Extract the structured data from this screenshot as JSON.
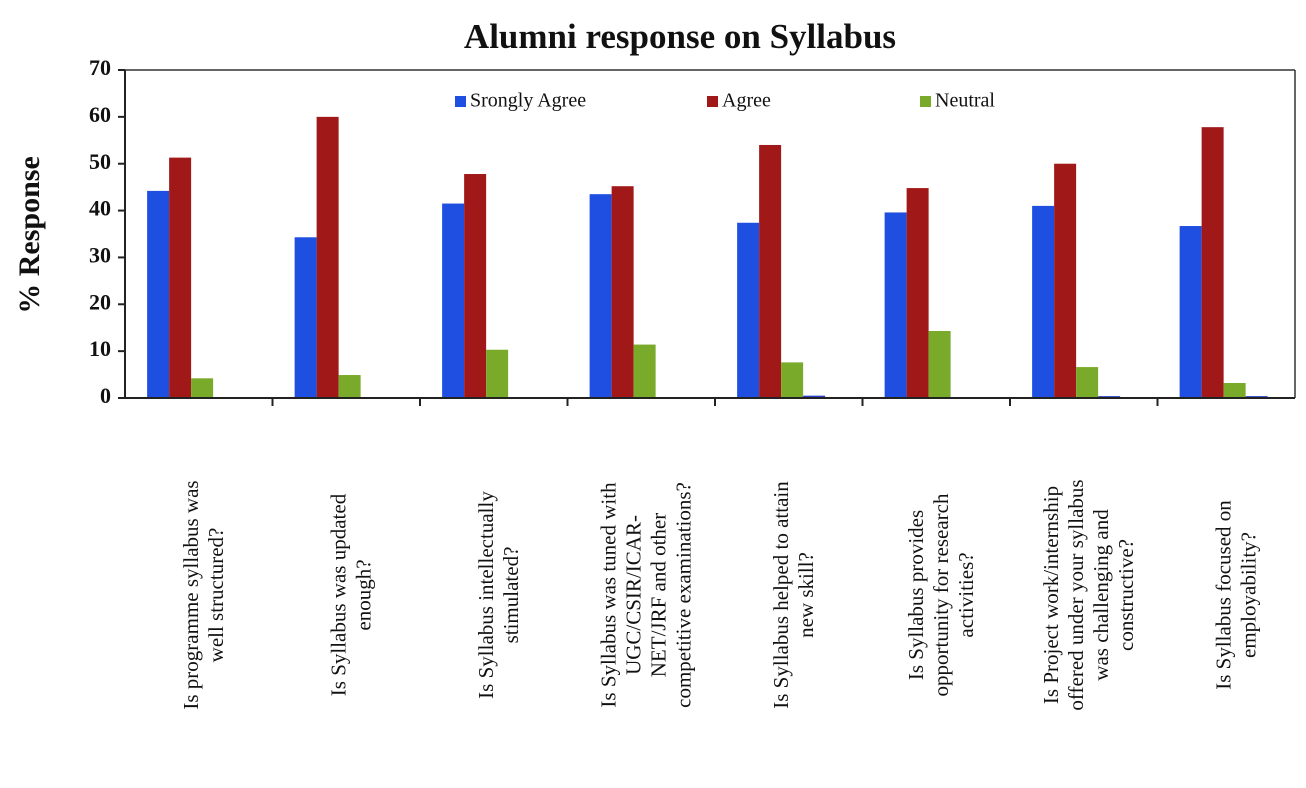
{
  "chart_data": {
    "type": "bar",
    "title": "Alumni response on Syllabus",
    "ylabel": "% Response",
    "categories": [
      [
        "Is programme syllabus was",
        "well structured?"
      ],
      [
        "Is Syllabus was updated",
        "enough?"
      ],
      [
        "Is Syllabus intellectually",
        "stimulated?"
      ],
      [
        "Is Syllabus was tuned with",
        "UGC/CSIR/ICAR-",
        "NET/JRF and other",
        "competitive examinations?"
      ],
      [
        "Is Syllabus helped to attain",
        "new skill?"
      ],
      [
        "Is Syllabus provides",
        "opportunity for research",
        "activities?"
      ],
      [
        "Is Project work/internship",
        "offered under your syllabus",
        "was challenging and",
        "constructive?"
      ],
      [
        "Is Syllabus focused on",
        "employability?"
      ]
    ],
    "series": [
      {
        "name": "Srongly Agree",
        "color": "#1f4fe0",
        "values": [
          44.2,
          34.3,
          41.5,
          43.5,
          37.4,
          39.6,
          41.0,
          36.7
        ]
      },
      {
        "name": "Agree",
        "color": "#a01818",
        "values": [
          51.3,
          60.0,
          47.8,
          45.2,
          54.0,
          44.8,
          50.0,
          57.8
        ]
      },
      {
        "name": "Neutral",
        "color": "#7aaa2a",
        "values": [
          4.2,
          4.9,
          10.3,
          11.4,
          7.6,
          14.3,
          6.6,
          3.2
        ]
      },
      {
        "color": "#2a3fc8",
        "values": [
          0,
          0,
          0,
          0,
          0.5,
          0,
          0.4,
          0.4
        ]
      }
    ],
    "ylim": [
      0,
      70
    ],
    "yticks": [
      0,
      10,
      20,
      30,
      40,
      50,
      60,
      70
    ],
    "legend": "top"
  }
}
